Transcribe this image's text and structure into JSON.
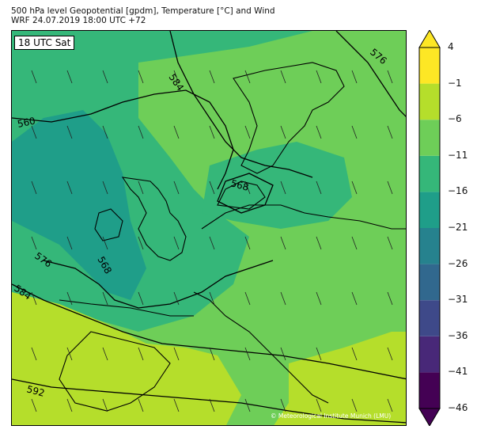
{
  "header": {
    "title_line1": "500 hPa level Geopotential [gpdm], Temperature [°C] and Wind",
    "title_line2": "WRF 24.07.2019 18:00 UTC +72"
  },
  "map": {
    "time_label": "18 UTC Sat",
    "copyright": "© Meteorological Institute Munich (LMU)",
    "contour_labels": [
      "576",
      "584",
      "560",
      "568",
      "568",
      "576",
      "584",
      "592"
    ]
  },
  "colorbar": {
    "labels": [
      "4",
      "−1",
      "−6",
      "−11",
      "−16",
      "−21",
      "−26",
      "−31",
      "−36",
      "−41",
      "−46"
    ],
    "colors": [
      "#440154",
      "#482878",
      "#3e4989",
      "#31688e",
      "#26828e",
      "#1f9e89",
      "#35b779",
      "#6ece58",
      "#b5de2b",
      "#fde725"
    ]
  }
}
